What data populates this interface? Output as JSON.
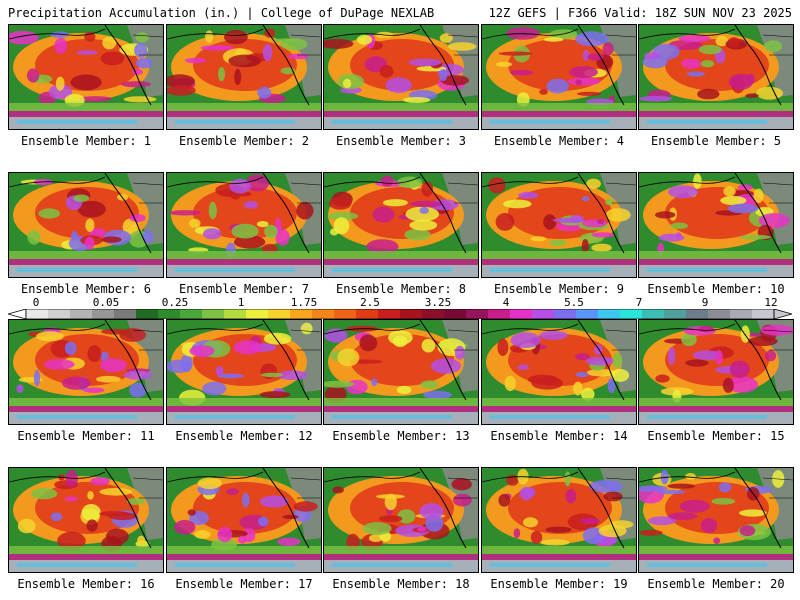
{
  "header": {
    "title": "Precipitation Accumulation (in.) | College of DuPage NEXLAB",
    "run_info": "12Z GEFS | F366 Valid: 18Z SUN NOV 23 2025"
  },
  "panels": [
    {
      "label": "Ensemble Member: 1"
    },
    {
      "label": "Ensemble Member: 2"
    },
    {
      "label": "Ensemble Member: 3"
    },
    {
      "label": "Ensemble Member: 4"
    },
    {
      "label": "Ensemble Member: 5"
    },
    {
      "label": "Ensemble Member: 6"
    },
    {
      "label": "Ensemble Member: 7"
    },
    {
      "label": "Ensemble Member: 8"
    },
    {
      "label": "Ensemble Member: 9"
    },
    {
      "label": "Ensemble Member: 10"
    },
    {
      "label": "Ensemble Member: 11"
    },
    {
      "label": "Ensemble Member: 12"
    },
    {
      "label": "Ensemble Member: 13"
    },
    {
      "label": "Ensemble Member: 14"
    },
    {
      "label": "Ensemble Member: 15"
    },
    {
      "label": "Ensemble Member: 16"
    },
    {
      "label": "Ensemble Member: 17"
    },
    {
      "label": "Ensemble Member: 18"
    },
    {
      "label": "Ensemble Member: 19"
    },
    {
      "label": "Ensemble Member: 20"
    }
  ],
  "colorbar": {
    "ticks": [
      "0",
      "0.05",
      "0.25",
      "1",
      "1.75",
      "2.5",
      "3.25",
      "4",
      "5.5",
      "7",
      "9",
      "12"
    ],
    "colors": [
      "#e8e8e8",
      "#d0d0d0",
      "#b4b4b4",
      "#969696",
      "#7a7a7a",
      "#226b22",
      "#2e8b2e",
      "#4aa83a",
      "#7dc243",
      "#b4dc3c",
      "#ecf03c",
      "#f7d22e",
      "#f7a81e",
      "#f3861a",
      "#ef6416",
      "#e23a12",
      "#c81e1e",
      "#a8141e",
      "#8c0f28",
      "#780a38",
      "#96145a",
      "#c81e8c",
      "#e632c8",
      "#b450e6",
      "#7d6ef0",
      "#5a96f5",
      "#3cc8f0",
      "#28e6dc",
      "#3cbeb4",
      "#50a09b",
      "#6e7d8c",
      "#8c8c96",
      "#aaaab4",
      "#c8c8d2"
    ]
  }
}
